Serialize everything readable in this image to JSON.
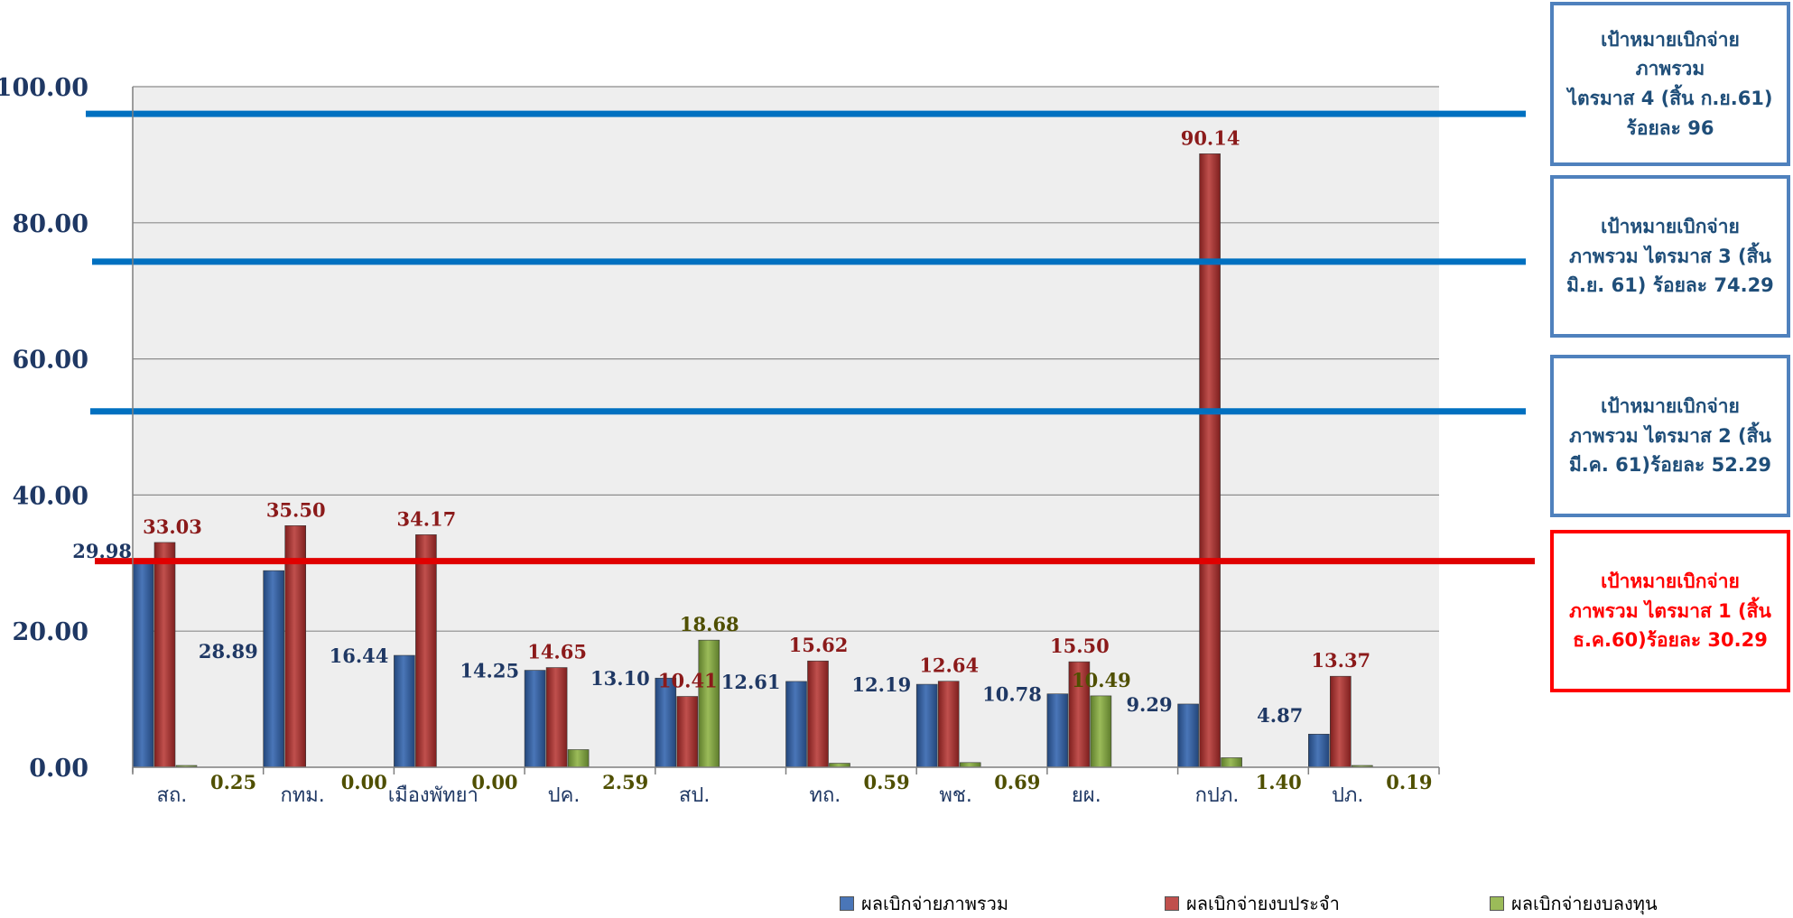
{
  "chart_data": {
    "type": "bar",
    "categories": [
      "สถ.",
      "กทม.",
      "เมืองพัทยา",
      "ปค.",
      "สป.",
      "ทถ.",
      "พช.",
      "ยผ.",
      "กปภ.",
      "ปภ."
    ],
    "series": [
      {
        "name": "ผลเบิกจ่ายภาพรวม",
        "color": "#2e5a95",
        "values": [
          29.98,
          28.89,
          16.44,
          14.25,
          13.1,
          12.61,
          12.19,
          10.78,
          9.29,
          4.87
        ],
        "labels": [
          "29.98",
          "28.89",
          "16.44",
          "14.25",
          "13.10",
          "12.61",
          "12.19",
          "10.78",
          "9.29",
          "4.87"
        ]
      },
      {
        "name": "ผลเบิกจ่ายงบประจำ",
        "color": "#a6302f",
        "values": [
          33.03,
          35.5,
          34.17,
          14.65,
          10.41,
          15.62,
          12.64,
          15.5,
          90.14,
          13.37
        ],
        "labels": [
          "33.03",
          "35.50",
          "34.17",
          "14.65",
          "10.41",
          "15.62",
          "12.64",
          "15.50",
          "90.14",
          "13.37"
        ]
      },
      {
        "name": "ผลเบิกจ่ายงบลงทุน",
        "color": "#7fa341",
        "values": [
          0.25,
          0.0,
          0.0,
          2.59,
          18.68,
          0.59,
          0.69,
          10.49,
          1.4,
          0.19
        ],
        "labels": [
          "0.25",
          "0.00",
          "0.00",
          "2.59",
          "18.68",
          "0.59",
          "0.69",
          "10.49",
          "1.40",
          "0.19"
        ]
      }
    ],
    "y_ticks": [
      "0.00",
      "20.00",
      "40.00",
      "60.00",
      "80.00",
      "100.00"
    ],
    "ylim": [
      0,
      100
    ],
    "grid": true,
    "legend_position": "bottom",
    "reference_lines": [
      {
        "value": 96,
        "color": "#0070c0"
      },
      {
        "value": 74.29,
        "color": "#0070c0"
      },
      {
        "value": 52.29,
        "color": "#0070c0"
      },
      {
        "value": 30.29,
        "color": "#e00000"
      }
    ]
  },
  "targets": [
    {
      "text": "เป้าหมายเบิกจ่าย\nภาพรวม\nไตรมาส 4 (สิ้น ก.ย.61)\nร้อยละ 96"
    },
    {
      "text": "เป้าหมายเบิกจ่าย\nภาพรวม ไตรมาส 3 (สิ้น\nมิ.ย. 61)  ร้อยละ 74.29"
    },
    {
      "text": "เป้าหมายเบิกจ่าย\nภาพรวม ไตรมาส 2 (สิ้น\nมี.ค. 61)ร้อยละ 52.29"
    },
    {
      "text": "เป้าหมายเบิกจ่าย\nภาพรวม ไตรมาส 1 (สิ้น\nธ.ค.60)ร้อยละ 30.29"
    }
  ],
  "legend": [
    {
      "label": "ผลเบิกจ่ายภาพรวม",
      "color": "#2e5a95"
    },
    {
      "label": "ผลเบิกจ่ายงบประจำ",
      "color": "#a6302f"
    },
    {
      "label": "ผลเบิกจ่ายงบลงทุน",
      "color": "#7fa341"
    }
  ]
}
